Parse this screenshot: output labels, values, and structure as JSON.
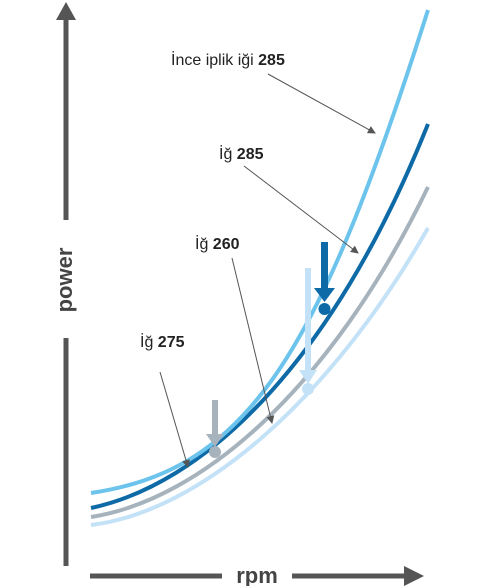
{
  "axes": {
    "x_label": "rpm",
    "y_label": "power"
  },
  "curves": [
    {
      "label_text": "İnce iplik iği ",
      "label_number": "285",
      "color": "#6cc4ec"
    },
    {
      "label_text": "İğ ",
      "label_number": "285",
      "color": "#0e6aa6"
    },
    {
      "label_text": "İğ ",
      "label_number": "260",
      "color": "#a6b3bd"
    },
    {
      "label_text": "İğ ",
      "label_number": "275",
      "color": "#c4e2f7"
    }
  ],
  "colors": {
    "axis": "#555555",
    "leader": "#555555"
  }
}
